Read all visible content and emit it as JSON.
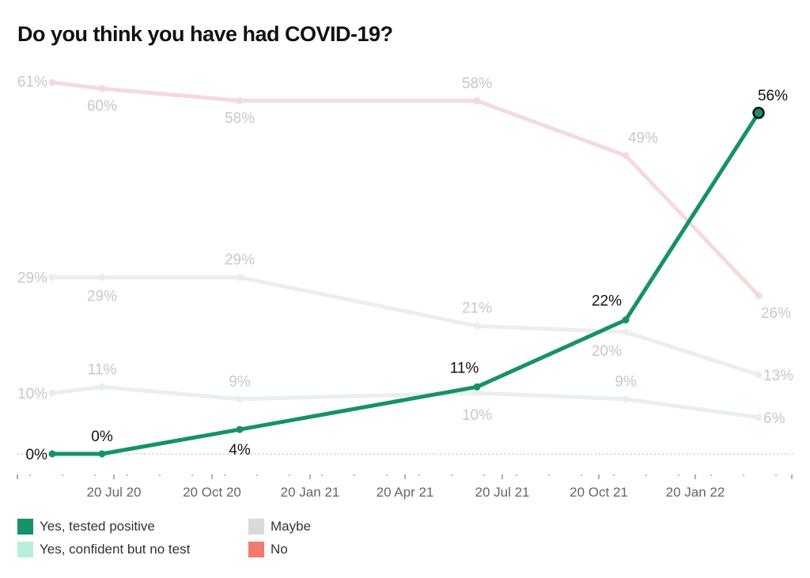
{
  "chart_data": {
    "type": "line",
    "title": "Do you think you have had COVID-19?",
    "xlabel": "",
    "ylabel": "",
    "ylim": [
      0,
      61
    ],
    "grid": false,
    "x_dates": [
      "2020-05",
      "2020-07",
      "2020-11",
      "2021-07",
      "2021-11",
      "2022-03"
    ],
    "x_ticks": [
      "20 Jul 20",
      "20 Oct 20",
      "20 Jan 21",
      "20 Apr 21",
      "20 Jul 21",
      "20 Oct 21",
      "20 Jan 22"
    ],
    "legend_position": "bottom-left",
    "series": [
      {
        "key": "no",
        "name": "No",
        "color": "#f07a6e",
        "line_color": "#f6d9dc",
        "label_color": "#c8c8c8",
        "values": [
          61,
          60,
          58,
          58,
          49,
          26
        ],
        "labels": [
          "61%",
          "60%",
          "58%",
          "58%",
          "49%",
          "26%"
        ]
      },
      {
        "key": "maybe",
        "name": "Maybe",
        "color": "#d9d9d9",
        "line_color": "#ededed",
        "label_color": "#c8c8c8",
        "values": [
          29,
          29,
          29,
          21,
          20,
          13
        ],
        "labels": [
          "29%",
          "29%",
          "29%",
          "21%",
          "20%",
          "13%"
        ]
      },
      {
        "key": "confident",
        "name": "Yes, confident but no test",
        "color": "#b9efd9",
        "line_color": "#e8efec",
        "label_color": "#c8c8c8",
        "values": [
          10,
          11,
          9,
          10,
          9,
          6
        ],
        "labels": [
          "10%",
          "11%",
          "9%",
          "10%",
          "9%",
          "6%"
        ]
      },
      {
        "key": "tested",
        "name": "Yes, tested positive",
        "color": "#16916a",
        "line_color": "#16916a",
        "label_color": "#111111",
        "values": [
          0,
          0,
          4,
          11,
          22,
          56
        ],
        "labels": [
          "0%",
          "0%",
          "4%",
          "11%",
          "22%",
          "56%"
        ]
      }
    ]
  },
  "legend": {
    "items": [
      {
        "label": "Yes, tested positive",
        "color": "#16916a"
      },
      {
        "label": "Yes, confident but no test",
        "color": "#b9efd9"
      },
      {
        "label": "Maybe",
        "color": "#d9d9d9"
      },
      {
        "label": "No",
        "color": "#f07a6e"
      }
    ]
  }
}
